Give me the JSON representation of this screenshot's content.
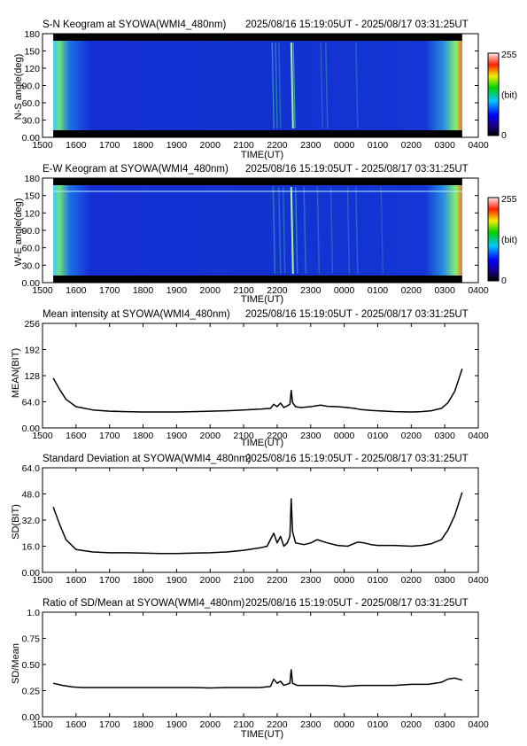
{
  "x_ticks": [
    "1500",
    "1600",
    "1700",
    "1800",
    "1900",
    "2000",
    "2100",
    "2200",
    "2300",
    "0000",
    "0100",
    "0200",
    "0300",
    "0400"
  ],
  "x_label": "TIME(UT)",
  "time_range": "2025/08/16 15:19:05UT - 2025/08/17 03:31:25UT",
  "colors": {
    "keogram_bg": "#1530d8",
    "edge_glow": "#7cf27c",
    "line": "#000000"
  },
  "chart_data": [
    {
      "type": "heatmap",
      "title": "S-N Keogram at SYOWA(WMI4_480nm)",
      "time_range": "2025/08/16 15:19:05UT - 2025/08/17 03:31:25UT",
      "ylabel": "N-S angle(deg)",
      "yticks": [
        "0.00",
        "30.0",
        "60.0",
        "90.0",
        "120",
        "150",
        "180"
      ],
      "xlim": [
        15.0,
        28.0
      ],
      "ylim": [
        0,
        180
      ],
      "data_xlim": [
        15.32,
        27.52
      ],
      "colorbar": {
        "ticks": [
          "255",
          "(bit)",
          "0"
        ],
        "range": [
          0,
          255
        ],
        "unit": "(bit)"
      },
      "streaks": [
        {
          "x": 21.85,
          "i": 0.55
        },
        {
          "x": 21.95,
          "i": 0.45
        },
        {
          "x": 22.05,
          "i": 0.35
        },
        {
          "x": 22.42,
          "i": 0.9
        },
        {
          "x": 22.48,
          "i": 0.65
        },
        {
          "x": 23.3,
          "i": 0.3
        },
        {
          "x": 23.45,
          "i": 0.35
        },
        {
          "x": 24.35,
          "i": 0.3
        }
      ]
    },
    {
      "type": "heatmap",
      "title": "E-W Keogram at SYOWA(WMI4_480nm)",
      "time_range": "2025/08/16 15:19:05UT - 2025/08/17 03:31:25UT",
      "ylabel": "W-E angle(deg)",
      "yticks": [
        "0.00",
        "30.0",
        "60.0",
        "90.0",
        "120",
        "150",
        "180"
      ],
      "xlim": [
        15.0,
        28.0
      ],
      "ylim": [
        0,
        180
      ],
      "data_xlim": [
        15.32,
        27.52
      ],
      "colorbar": {
        "ticks": [
          "255",
          "(bit)",
          "0"
        ],
        "range": [
          0,
          255
        ],
        "unit": "(bit)"
      },
      "streaks": [
        {
          "x": 21.88,
          "i": 0.45
        },
        {
          "x": 22.05,
          "i": 0.4
        },
        {
          "x": 22.18,
          "i": 0.35
        },
        {
          "x": 22.42,
          "i": 0.95
        },
        {
          "x": 22.55,
          "i": 0.5
        },
        {
          "x": 22.8,
          "i": 0.4
        },
        {
          "x": 23.2,
          "i": 0.35
        },
        {
          "x": 23.6,
          "i": 0.3
        },
        {
          "x": 24.1,
          "i": 0.3
        },
        {
          "x": 24.35,
          "i": 0.35
        },
        {
          "x": 25.1,
          "i": 0.25
        }
      ]
    },
    {
      "type": "line",
      "title": "Mean intensity at SYOWA(WMI4_480nm)",
      "time_range": "2025/08/16 15:19:05UT - 2025/08/17 03:31:25UT",
      "ylabel": "MEAN(BIT)",
      "xlabel": "TIME(UT)",
      "yticks": [
        "0.00",
        "64.0",
        "128",
        "192",
        "256"
      ],
      "xlim": [
        15.0,
        28.0
      ],
      "ylim": [
        0,
        256
      ],
      "series": [
        {
          "x": [
            15.32,
            15.5,
            15.7,
            16.0,
            16.5,
            17.0,
            17.5,
            18.0,
            18.5,
            19.0,
            19.5,
            20.0,
            20.5,
            21.0,
            21.5,
            21.8,
            21.9,
            22.0,
            22.1,
            22.2,
            22.3,
            22.38,
            22.42,
            22.46,
            22.55,
            22.7,
            23.0,
            23.3,
            23.5,
            23.8,
            24.1,
            24.3,
            24.5,
            24.8,
            25.0,
            25.5,
            26.0,
            26.3,
            26.6,
            26.9,
            27.1,
            27.3,
            27.52
          ],
          "y": [
            122,
            96,
            70,
            52,
            44,
            41,
            40,
            39,
            39,
            39,
            40,
            41,
            42,
            44,
            46,
            48,
            58,
            52,
            61,
            50,
            54,
            58,
            92,
            62,
            52,
            50,
            52,
            56,
            53,
            52,
            50,
            48,
            45,
            43,
            42,
            40,
            39,
            40,
            42,
            48,
            62,
            90,
            145
          ]
        }
      ]
    },
    {
      "type": "line",
      "title": "Standard Deviation at SYOWA(WMI4_480nm)",
      "time_range": "2025/08/16 15:19:05UT - 2025/08/17 03:31:25UT",
      "ylabel": "SD(BIT)",
      "xlabel": "",
      "yticks": [
        "0.00",
        "16.0",
        "32.0",
        "48.0",
        "64.0"
      ],
      "xlim": [
        15.0,
        28.0
      ],
      "ylim": [
        0,
        64
      ],
      "series": [
        {
          "x": [
            15.32,
            15.5,
            15.7,
            16.0,
            16.5,
            17.0,
            17.5,
            18.0,
            18.5,
            19.0,
            19.5,
            20.0,
            20.5,
            21.0,
            21.5,
            21.7,
            21.85,
            21.9,
            22.0,
            22.1,
            22.2,
            22.3,
            22.38,
            22.42,
            22.46,
            22.55,
            22.8,
            23.0,
            23.2,
            23.5,
            23.8,
            24.1,
            24.4,
            24.6,
            24.8,
            25.0,
            25.5,
            26.0,
            26.3,
            26.6,
            26.9,
            27.1,
            27.3,
            27.52
          ],
          "y": [
            40,
            30,
            20,
            14,
            12.5,
            12,
            12,
            11.8,
            11.5,
            11.5,
            11.8,
            12,
            12.5,
            13.5,
            15,
            16,
            22,
            24,
            18,
            22,
            16,
            18,
            22,
            45,
            25,
            18,
            17,
            18,
            20,
            18,
            16.5,
            16,
            18.5,
            18,
            17,
            16.5,
            16.5,
            16,
            16.5,
            17.5,
            20,
            26,
            35,
            49
          ]
        }
      ]
    },
    {
      "type": "line",
      "title": "Ratio of SD/Mean at SYOWA(WMI4_480nm)",
      "time_range": "2025/08/16 15:19:05UT - 2025/08/17 03:31:25UT",
      "ylabel": "SD/Mean",
      "xlabel": "TIME(UT)",
      "yticks": [
        "0.00",
        "0.25",
        "0.50",
        "0.75",
        "1.0"
      ],
      "xlim": [
        15.0,
        28.0
      ],
      "ylim": [
        0,
        1.0
      ],
      "series": [
        {
          "x": [
            15.32,
            15.6,
            15.9,
            16.2,
            16.5,
            17.0,
            17.5,
            18.0,
            18.5,
            19.0,
            19.5,
            20.0,
            20.5,
            21.0,
            21.5,
            21.8,
            21.9,
            22.0,
            22.1,
            22.2,
            22.38,
            22.42,
            22.46,
            22.6,
            23.0,
            23.5,
            24.0,
            24.5,
            25.0,
            25.5,
            26.0,
            26.5,
            26.9,
            27.1,
            27.3,
            27.52
          ],
          "y": [
            0.32,
            0.3,
            0.285,
            0.28,
            0.28,
            0.28,
            0.28,
            0.28,
            0.28,
            0.28,
            0.28,
            0.275,
            0.28,
            0.28,
            0.28,
            0.29,
            0.36,
            0.32,
            0.34,
            0.3,
            0.32,
            0.45,
            0.32,
            0.3,
            0.3,
            0.3,
            0.29,
            0.3,
            0.3,
            0.3,
            0.31,
            0.31,
            0.33,
            0.36,
            0.37,
            0.35
          ]
        }
      ]
    }
  ]
}
